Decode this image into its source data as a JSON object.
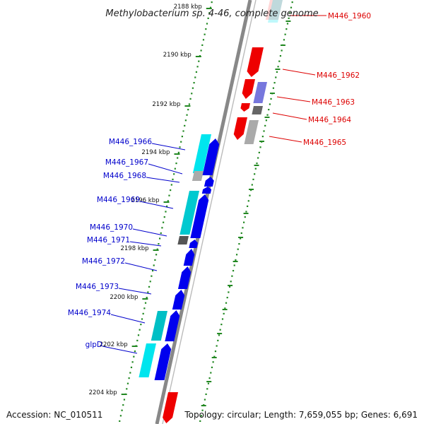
{
  "title": "Methylobacterium sp. 4-46, complete genome",
  "accession": "Accession: NC_010511",
  "topology": "Topology: circular; Length: 7,659,055 bp; Genes: 6,691",
  "colors": {
    "forward_label": "#0000cc",
    "reverse_label": "#dd0000",
    "forward_cds": "#0000ee",
    "reverse_cds": "#ee0000",
    "other_feature": "#777777",
    "cyan_feature": "#00e5ee",
    "backbone": "#888888",
    "ruler_dots": "#228822"
  },
  "scale_ticks": [
    "2188 kbp",
    "2190 kbp",
    "2192 kbp",
    "2194 kbp",
    "2196 kbp",
    "2198 kbp",
    "2200 kbp",
    "2202 kbp",
    "2204 kbp"
  ],
  "genes_forward": [
    "M446_1966",
    "M446_1967",
    "M446_1968",
    "M446_1969",
    "M446_1970",
    "M446_1971",
    "M446_1972",
    "M446_1973",
    "M446_1974",
    "glpD"
  ],
  "genes_reverse": [
    "M446_1960",
    "M446_1962",
    "M446_1963",
    "M446_1964",
    "M446_1965"
  ]
}
